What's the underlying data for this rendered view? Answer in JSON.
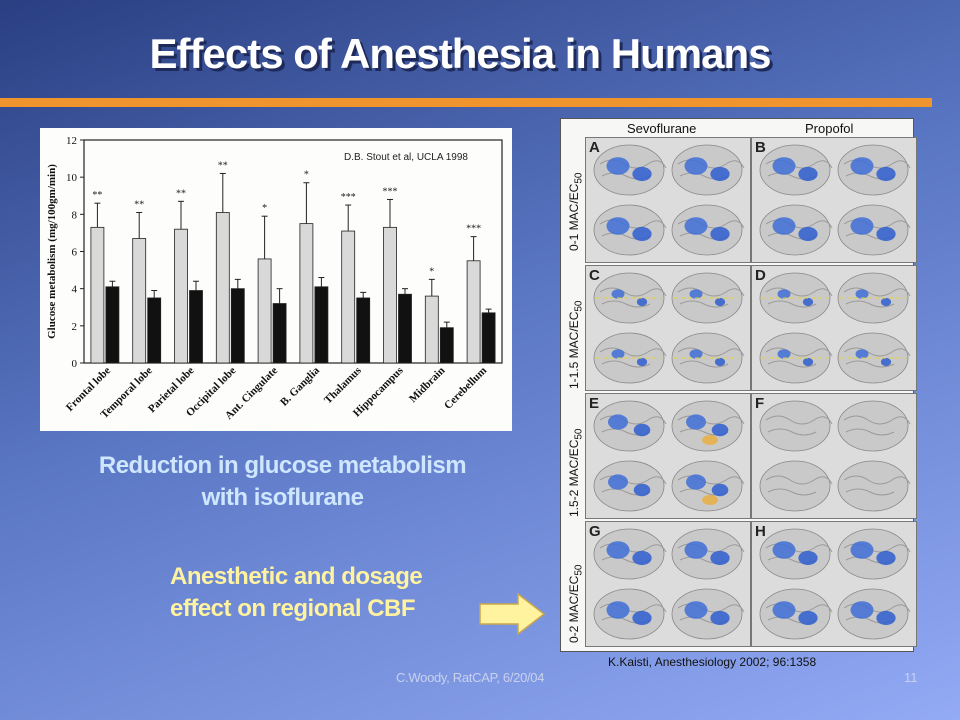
{
  "slide": {
    "title": "Effects of Anesthesia in Humans",
    "caption_glucose": [
      "Reduction in glucose metabolism",
      "with isoflurane"
    ],
    "caption_cbf": [
      "Anesthetic and dosage",
      "effect on regional CBF"
    ],
    "reference": "K.Kaisti, Anesthesiology 2002; 96:1358",
    "footer": "C.Woody, RatCAP, 6/20/04",
    "page_number": "11",
    "colors": {
      "accent_rule": "#f0942d",
      "caption_glucose": "#cfe6ff",
      "caption_cbf": "#fff3a0"
    }
  },
  "chart_data": {
    "type": "bar",
    "title": "",
    "credit": "D.B. Stout et al, UCLA 1998",
    "ylabel": "Glucose metabolism (mg/100gm/min)",
    "xlabel": "",
    "ylim": [
      0,
      12
    ],
    "yticks": [
      0,
      2,
      4,
      6,
      8,
      10,
      12
    ],
    "categories": [
      "Frontal lobe",
      "Temporal lobe",
      "Parietal lobe",
      "Occipital lobe",
      "Ant. Cingulate",
      "B. Ganglia",
      "Thalamus",
      "Hippocampus",
      "Midbrain",
      "Cerebellum"
    ],
    "series": [
      {
        "values": [
          7.3,
          6.7,
          7.2,
          8.1,
          5.6,
          7.5,
          7.1,
          7.3,
          3.6,
          5.5
        ],
        "errors": [
          1.3,
          1.4,
          1.5,
          2.1,
          2.3,
          2.2,
          1.4,
          1.5,
          0.9,
          1.3
        ],
        "color": "#d9d9d9"
      },
      {
        "values": [
          4.1,
          3.5,
          3.9,
          4.0,
          3.2,
          4.1,
          3.5,
          3.7,
          1.9,
          2.7
        ],
        "errors": [
          0.3,
          0.4,
          0.5,
          0.5,
          0.8,
          0.5,
          0.3,
          0.3,
          0.3,
          0.2
        ],
        "color": "#111111"
      }
    ],
    "significance": [
      "**",
      "**",
      "**",
      "**",
      "*",
      "*",
      "***",
      "***",
      "*",
      "***"
    ],
    "grid": false
  },
  "brain_figure": {
    "columns": [
      "Sevoflurane",
      "Propofol"
    ],
    "rows": [
      "0-1 MAC/EC",
      "1-1.5 MAC/EC",
      "1.5-2 MAC/EC",
      "0-2 MAC/EC"
    ],
    "row_subscript": "50",
    "panels": [
      "A",
      "B",
      "C",
      "D",
      "E",
      "F",
      "G",
      "H"
    ]
  }
}
